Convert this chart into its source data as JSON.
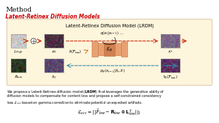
{
  "title": "Method",
  "subtitle": "Latent-Retinex Diffusion Models",
  "subtitle_color": "#cc0000",
  "diagram_title": "Latent-Retinex Diffusion Model (LRDM)",
  "bg_color": "#fdf5dc",
  "outer_bg": "#ffffff",
  "body_text_line1": "We propose a Latent-Retinex diffusion model (LRDM) that leverages the generative ability of",
  "body_text_line2": "diffusion models to compensate for content loss and propose a self-constrained consistency",
  "body_text_line3": "loss L_scc based on gamma correction to eliminate potential unexpected artifacts.",
  "img_colors": {
    "L_high": "#c8c8c8",
    "x0_top": "#4a3040",
    "xT_top": "#7a6888",
    "Rlow": "#2a3520",
    "xT_bot": "#5a4870",
    "s0": "#5a3060"
  },
  "unet_color": "#e8a070",
  "unet_dark": "#c07040",
  "arrow_red": "#cc2200",
  "arrow_blue": "#3388aa",
  "arrow_orange": "#cc5500"
}
